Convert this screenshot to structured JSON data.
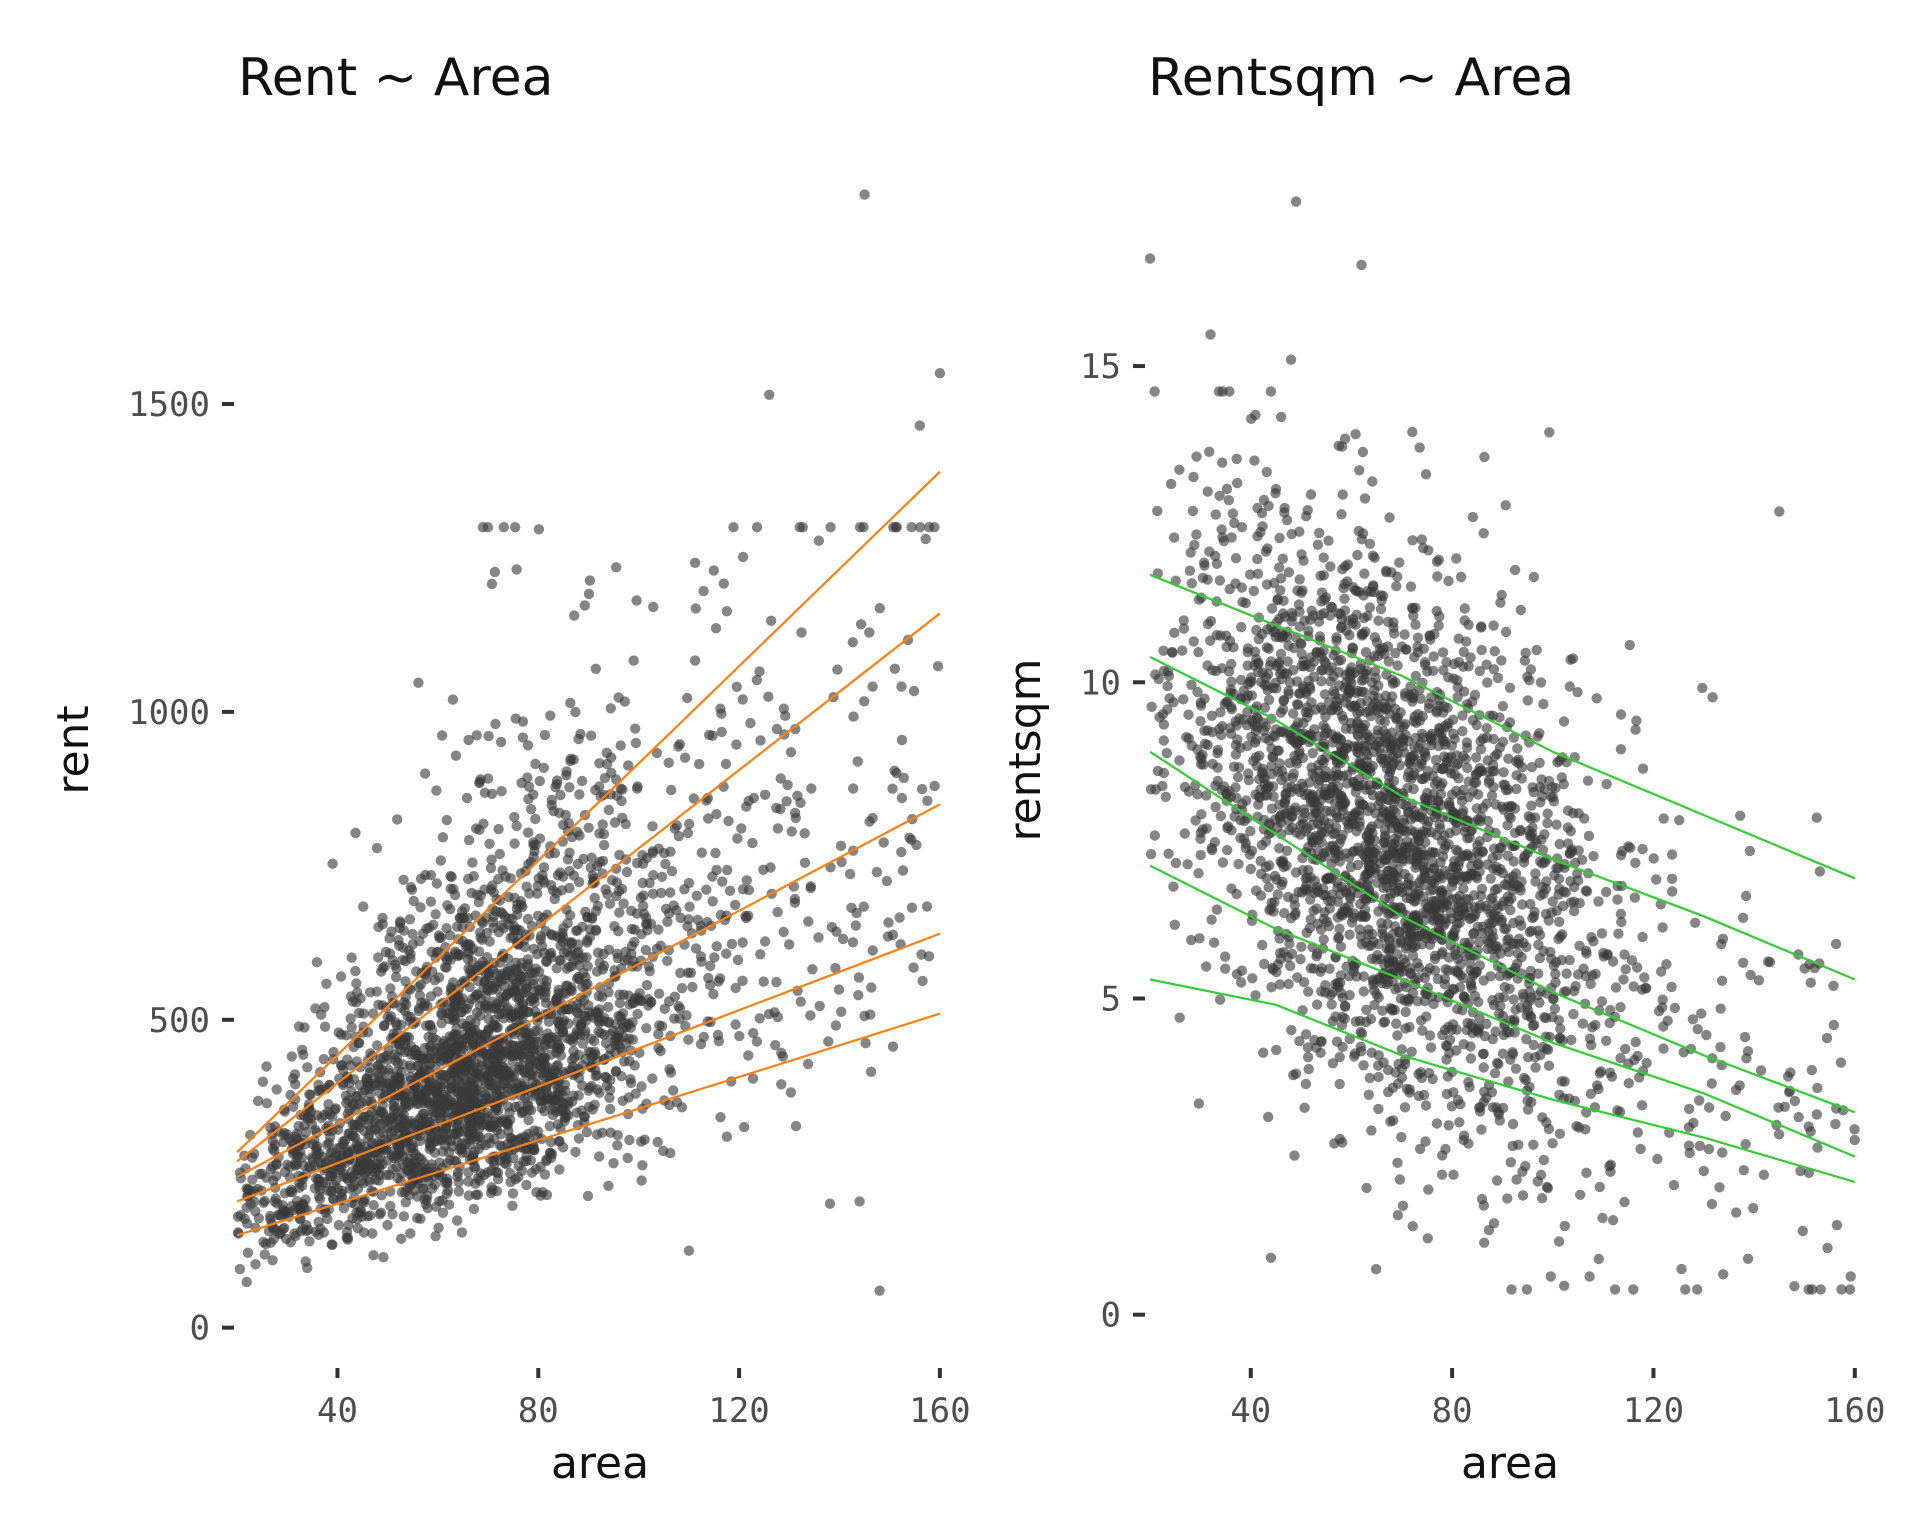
{
  "chart_data": [
    {
      "type": "scatter",
      "title": "Rent ~ Area",
      "xlabel": "area",
      "ylabel": "rent",
      "xlim": [
        17,
        166
      ],
      "ylim": [
        -20,
        1880
      ],
      "x_ticks": [
        40,
        80,
        120,
        160
      ],
      "y_ticks": [
        0,
        500,
        1000,
        1500
      ],
      "x_tick_labels": [
        "40",
        "80",
        "120",
        "160"
      ],
      "y_tick_labels": [
        "0",
        "500",
        "1000",
        "1500"
      ],
      "grid": false,
      "legend": "none",
      "point_color": "#3a3a3a",
      "point_opacity": 0.62,
      "line_color": "#ff7f0e",
      "scatter_summary": {
        "n_points": 2900,
        "x_range": [
          20,
          160
        ],
        "y_range": [
          40,
          1840
        ],
        "notable_points": [
          [
            145,
            1840
          ],
          [
            126,
            1515
          ],
          [
            160,
            1550
          ],
          [
            156,
            1465
          ],
          [
            63,
            1020
          ],
          [
            148,
            60
          ],
          [
            144,
            205
          ],
          [
            110,
            125
          ]
        ]
      },
      "series": [
        {
          "name": "quantile line 1",
          "x": [
            20,
            160
          ],
          "y": [
            150,
            510
          ]
        },
        {
          "name": "quantile line 2",
          "x": [
            20,
            160
          ],
          "y": [
            205,
            640
          ]
        },
        {
          "name": "quantile line 3",
          "x": [
            20,
            160
          ],
          "y": [
            245,
            850
          ]
        },
        {
          "name": "quantile line 4",
          "x": [
            20,
            160
          ],
          "y": [
            270,
            1160
          ]
        },
        {
          "name": "quantile line 5",
          "x": [
            20,
            160
          ],
          "y": [
            285,
            1390
          ]
        }
      ]
    },
    {
      "type": "scatter",
      "title": "Rentsqm ~ Area",
      "xlabel": "area",
      "ylabel": "rentsqm",
      "xlim": [
        17,
        166
      ],
      "ylim": [
        -0.4,
        18.1
      ],
      "x_ticks": [
        40,
        80,
        120,
        160
      ],
      "y_ticks": [
        0,
        5,
        10,
        15
      ],
      "x_tick_labels": [
        "40",
        "80",
        "120",
        "160"
      ],
      "y_tick_labels": [
        "0",
        "5",
        "10",
        "15"
      ],
      "grid": false,
      "legend": "none",
      "point_color": "#3a3a3a",
      "point_opacity": 0.62,
      "line_color": "#33cc33",
      "scatter_summary": {
        "n_points": 2900,
        "x_range": [
          20,
          160
        ],
        "y_range": [
          0.4,
          17.6
        ],
        "notable_points": [
          [
            49,
            17.6
          ],
          [
            20,
            16.7
          ],
          [
            62,
            16.6
          ],
          [
            32,
            15.5
          ],
          [
            48,
            15.1
          ],
          [
            148,
            0.45
          ],
          [
            44,
            0.9
          ],
          [
            145,
            12.7
          ]
        ]
      },
      "series": [
        {
          "name": "quantile line 1",
          "x": [
            20,
            45,
            70,
            100,
            130,
            160
          ],
          "y": [
            5.3,
            4.9,
            4.1,
            3.4,
            2.8,
            2.1
          ]
        },
        {
          "name": "quantile line 2",
          "x": [
            20,
            45,
            70,
            100,
            130,
            160
          ],
          "y": [
            7.1,
            6.1,
            5.3,
            4.3,
            3.5,
            2.5
          ]
        },
        {
          "name": "quantile line 3",
          "x": [
            20,
            45,
            70,
            100,
            130,
            160
          ],
          "y": [
            8.9,
            7.6,
            6.3,
            5.1,
            4.1,
            3.2
          ]
        },
        {
          "name": "quantile line 4",
          "x": [
            20,
            45,
            70,
            100,
            130,
            160
          ],
          "y": [
            10.4,
            9.4,
            8.2,
            7.2,
            6.3,
            5.3
          ]
        },
        {
          "name": "quantile line 5",
          "x": [
            20,
            45,
            70,
            100,
            130,
            160
          ],
          "y": [
            11.7,
            10.9,
            10.1,
            8.9,
            7.9,
            6.9
          ]
        }
      ]
    }
  ]
}
